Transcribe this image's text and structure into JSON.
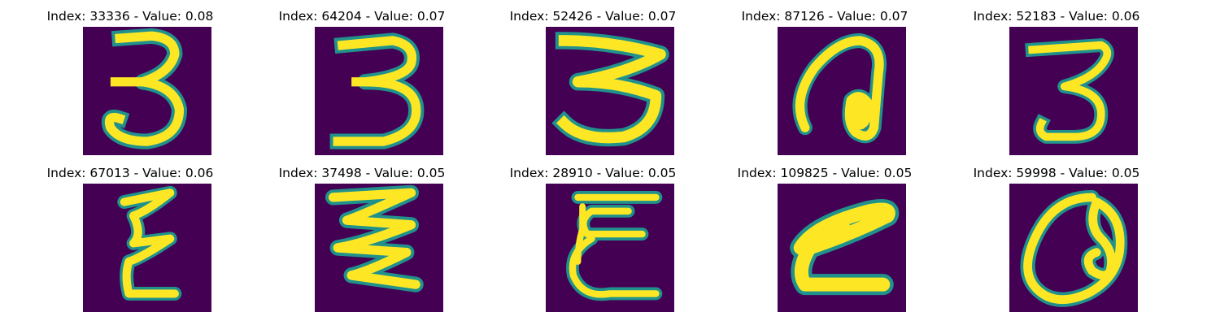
{
  "figure": {
    "panels": [
      {
        "title": "Index: 33336 - Value: 0.08",
        "glyph": "digit-3"
      },
      {
        "title": "Index: 64204 - Value: 0.07",
        "glyph": "digit-3"
      },
      {
        "title": "Index: 52426 - Value: 0.07",
        "glyph": "digit-3-wide"
      },
      {
        "title": "Index: 87126 - Value: 0.07",
        "glyph": "letter-a-loop"
      },
      {
        "title": "Index: 52183 - Value: 0.06",
        "glyph": "digit-3"
      },
      {
        "title": "Index: 67013 - Value: 0.06",
        "glyph": "zigzag-z"
      },
      {
        "title": "Index: 37498 - Value: 0.05",
        "glyph": "zigzag-3"
      },
      {
        "title": "Index: 28910 - Value: 0.05",
        "glyph": "epsilon-e"
      },
      {
        "title": "Index: 109825 - Value: 0.05",
        "glyph": "bold-z"
      },
      {
        "title": "Index: 59998 - Value: 0.05",
        "glyph": "loop-a"
      }
    ],
    "colors": {
      "background": "#440154",
      "stroke_edge": "#21918c",
      "stroke_core": "#fde725",
      "stroke_mid": "#5ec962"
    }
  }
}
